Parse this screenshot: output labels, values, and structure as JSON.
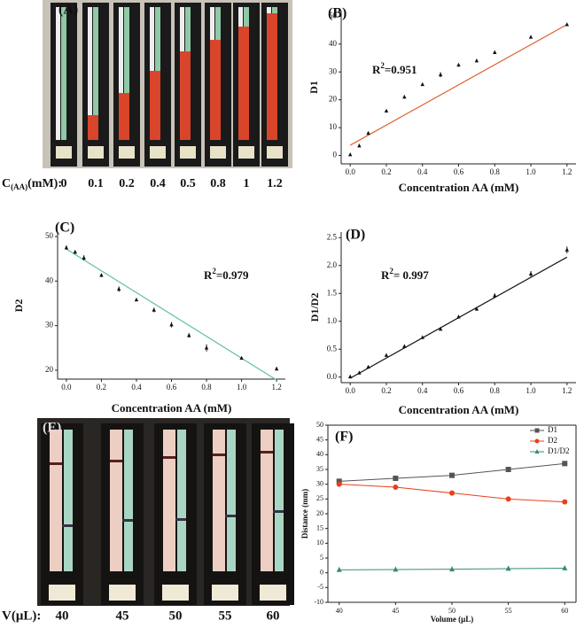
{
  "panel_a": {
    "label": "(A)",
    "axis_label_main": "C",
    "axis_label_sub": "(AA)",
    "axis_label_unit": "(mM):",
    "concentrations": [
      "0",
      "0.1",
      "0.2",
      "0.4",
      "0.5",
      "0.8",
      "1",
      "1.2"
    ]
  },
  "panel_e": {
    "label": "(E)",
    "axis_label": "V(μL):",
    "volumes": [
      "40",
      "45",
      "50",
      "55",
      "60"
    ]
  },
  "chart_data": [
    {
      "type": "scatter",
      "panel_label": "(B)",
      "xlabel": "Concentration AA (mM)",
      "ylabel": "D1",
      "color": "#111111",
      "marker": "triangle",
      "x": [
        0,
        0.05,
        0.1,
        0.2,
        0.3,
        0.4,
        0.5,
        0.6,
        0.7,
        0.8,
        1.0,
        1.2
      ],
      "values": [
        0.3,
        3.5,
        8,
        16,
        21,
        25.5,
        29,
        32.5,
        34,
        37,
        42.5,
        47
      ],
      "errors": [
        0.3,
        0.5,
        0.6,
        0.5,
        0.6,
        0.5,
        0.9,
        0.6,
        0.5,
        0.5,
        0.5,
        0.4
      ],
      "fit": {
        "color": "#e0622e",
        "x": [
          0,
          1.2
        ],
        "values": [
          3.7,
          47
        ]
      },
      "annotation": [
        "R",
        "2",
        "=0.951"
      ],
      "xlim": [
        -0.05,
        1.25
      ],
      "ylim": [
        -3,
        52
      ],
      "xticks": [
        {
          "value": 0,
          "label": "0.0"
        },
        0.2,
        0.4,
        0.6,
        0.8,
        {
          "value": 1,
          "label": "1.0"
        },
        1.2
      ],
      "yticks": [
        0,
        10,
        20,
        30,
        40,
        50
      ]
    },
    {
      "type": "scatter",
      "panel_label": "(C)",
      "xlabel": "Concentration AA (mM)",
      "ylabel": "D2",
      "color": "#111111",
      "marker": "triangle",
      "x": [
        0,
        0.05,
        0.1,
        0.2,
        0.3,
        0.4,
        0.5,
        0.6,
        0.7,
        0.8,
        1.0,
        1.2
      ],
      "values": [
        47.5,
        46.5,
        45.2,
        41.3,
        38.2,
        35.8,
        33.5,
        30.2,
        27.8,
        25,
        22.7,
        20.3
      ],
      "errors": [
        0.5,
        0.4,
        0.6,
        0.4,
        0.6,
        0.3,
        0.5,
        0.6,
        0.5,
        0.8,
        0.3,
        0.4
      ],
      "fit": {
        "color": "#5fbfa0",
        "x": [
          0,
          1.2
        ],
        "values": [
          47.2,
          17.8
        ]
      },
      "annotation": [
        "R",
        "2",
        "=0.979"
      ],
      "xlim": [
        -0.05,
        1.25
      ],
      "ylim": [
        18,
        51
      ],
      "xticks": [
        {
          "value": 0,
          "label": "0.0"
        },
        0.2,
        0.4,
        0.6,
        0.8,
        {
          "value": 1,
          "label": "1.0"
        },
        1.2
      ],
      "yticks": [
        20,
        30,
        40,
        50
      ]
    },
    {
      "type": "scatter",
      "panel_label": "(D)",
      "xlabel": "Concentration AA (mM)",
      "ylabel": "D1/D2",
      "color": "#111111",
      "marker": "triangle",
      "x": [
        0,
        0.05,
        0.1,
        0.2,
        0.3,
        0.4,
        0.5,
        0.6,
        0.7,
        0.8,
        1.0,
        1.2
      ],
      "values": [
        0.006,
        0.075,
        0.18,
        0.39,
        0.55,
        0.71,
        0.86,
        1.08,
        1.22,
        1.46,
        1.85,
        2.28
      ],
      "errors": [
        0.01,
        0.01,
        0.02,
        0.02,
        0.02,
        0.02,
        0.02,
        0.03,
        0.03,
        0.04,
        0.05,
        0.06
      ],
      "fit": {
        "color": "#111111",
        "x": [
          0,
          1.2
        ],
        "values": [
          -0.02,
          2.15
        ]
      },
      "annotation": [
        "R",
        "2",
        "= 0.997"
      ],
      "xlim": [
        -0.05,
        1.25
      ],
      "ylim": [
        -0.1,
        2.6
      ],
      "xticks": [
        {
          "value": 0,
          "label": "0.0"
        },
        0.2,
        0.4,
        0.6,
        0.8,
        {
          "value": 1,
          "label": "1.0"
        },
        1.2
      ],
      "yticks": [
        {
          "value": 0,
          "label": "0.0"
        },
        0.5,
        {
          "value": 1,
          "label": "1.0"
        },
        1.5,
        {
          "value": 2,
          "label": "2.0"
        },
        2.5
      ]
    },
    {
      "type": "line",
      "panel_label": "(F)",
      "xlabel": "Volume (μL)",
      "ylabel": "Distance (mm)",
      "legend": "upper right",
      "x": [
        40,
        45,
        50,
        55,
        60
      ],
      "series": [
        {
          "name": "D1",
          "color": "#555555",
          "marker": "square",
          "values": [
            31,
            32,
            33,
            35,
            37
          ]
        },
        {
          "name": "D2",
          "color": "#e8401c",
          "marker": "circle",
          "values": [
            30,
            29,
            27,
            25,
            24
          ]
        },
        {
          "name": "D1/D2",
          "color": "#3a8a7a",
          "marker": "triangle",
          "values": [
            1.0,
            1.1,
            1.2,
            1.4,
            1.55
          ]
        }
      ],
      "xlim": [
        39,
        61
      ],
      "ylim": [
        -10,
        50
      ],
      "xticks": [
        40,
        45,
        50,
        55,
        60
      ],
      "yticks": [
        -10,
        -5,
        0,
        5,
        10,
        15,
        20,
        25,
        30,
        35,
        40,
        45,
        50
      ]
    }
  ]
}
